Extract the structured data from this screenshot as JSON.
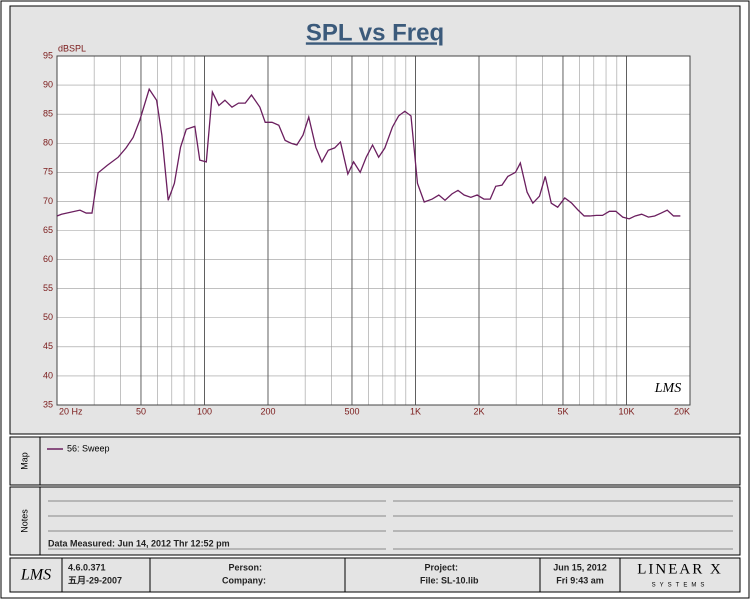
{
  "chart_data": {
    "type": "line",
    "title": "SPL vs Freq",
    "y_label": "dBSPL",
    "watermark": "LMS",
    "log_x": true,
    "grid": true,
    "xlim": [
      20,
      20000
    ],
    "xticks": [
      {
        "value": 20,
        "label": "20 Hz"
      },
      50,
      100,
      200,
      500,
      {
        "value": 1000,
        "label": "1K"
      },
      {
        "value": 2000,
        "label": "2K"
      },
      {
        "value": 5000,
        "label": "5K"
      },
      {
        "value": 10000,
        "label": "10K"
      },
      {
        "value": 20000,
        "label": "20K"
      }
    ],
    "ylim": [
      35,
      95
    ],
    "yticks": [
      35,
      40,
      45,
      50,
      55,
      60,
      65,
      70,
      75,
      80,
      85,
      90,
      95
    ],
    "x": [
      20,
      21,
      25.7,
      27.5,
      29.3,
      31.3,
      34.6,
      39,
      42.5,
      45.9,
      49.4,
      54.7,
      59.3,
      62.8,
      67.3,
      72,
      77,
      82,
      90,
      95,
      102,
      109,
      117,
      125,
      135,
      145,
      156,
      167,
      183,
      194,
      209,
      225,
      241,
      257,
      274,
      293,
      312,
      337,
      360,
      386,
      414,
      441,
      478,
      509,
      547,
      584,
      626,
      669,
      716,
      778,
      832,
      890,
      952,
      1022,
      1100,
      1200,
      1290,
      1380,
      1490,
      1590,
      1700,
      1830,
      1960,
      2110,
      2260,
      2400,
      2570,
      2740,
      2980,
      3140,
      3380,
      3600,
      3870,
      4120,
      4400,
      4720,
      5100,
      5500,
      5900,
      6300,
      6700,
      7200,
      7700,
      8300,
      8900,
      9600,
      10300,
      11000,
      11800,
      12700,
      13600,
      14600,
      15600,
      16700,
      18000
    ],
    "series": [
      {
        "name": "56: Sweep",
        "color": "#6b1f5f",
        "values": [
          67.5,
          67.8,
          68.5,
          68,
          68,
          74.9,
          76.2,
          77.6,
          79.2,
          81,
          84,
          89.3,
          87.4,
          81.4,
          70.2,
          73.1,
          79.3,
          82.4,
          82.9,
          77.1,
          76.8,
          88.8,
          86.5,
          87.4,
          86.2,
          86.9,
          86.9,
          88.3,
          86.2,
          83.6,
          83.6,
          83.1,
          80.5,
          80,
          79.7,
          81.4,
          84.5,
          79.3,
          76.8,
          78.8,
          79.2,
          80.2,
          74.7,
          76.8,
          75,
          77.6,
          79.7,
          77.6,
          79.2,
          82.8,
          84.7,
          85.5,
          84.7,
          73.1,
          69.9,
          70.4,
          71.1,
          70.2,
          71.3,
          71.9,
          71.1,
          70.7,
          71.1,
          70.4,
          70.4,
          72.6,
          72.8,
          74.3,
          75,
          76.6,
          71.6,
          69.7,
          70.9,
          74.3,
          69.7,
          69,
          70.6,
          69.7,
          68.5,
          67.5,
          67.5,
          67.6,
          67.6,
          68.3,
          68.3,
          67.3,
          67,
          67.5,
          67.8,
          67.3,
          67.5,
          68,
          68.5,
          67.5,
          67.5
        ]
      }
    ]
  },
  "map": {
    "label": "Map"
  },
  "notes": {
    "label": "Notes",
    "measured": "Data Measured: Jun 14, 2012  Thr 12:52 pm"
  },
  "footer": {
    "logo": "LMS",
    "version": "4.6.0.371",
    "build_date": "五月-29-2007",
    "person": "Person:",
    "company": "Company:",
    "project": "Project:",
    "file": "File: SL-10.lib",
    "date": "Jun 15, 2012",
    "time": "Fri  9:43 am",
    "brand": "LINEAR X",
    "brand_sub": "SYSTEMS"
  }
}
